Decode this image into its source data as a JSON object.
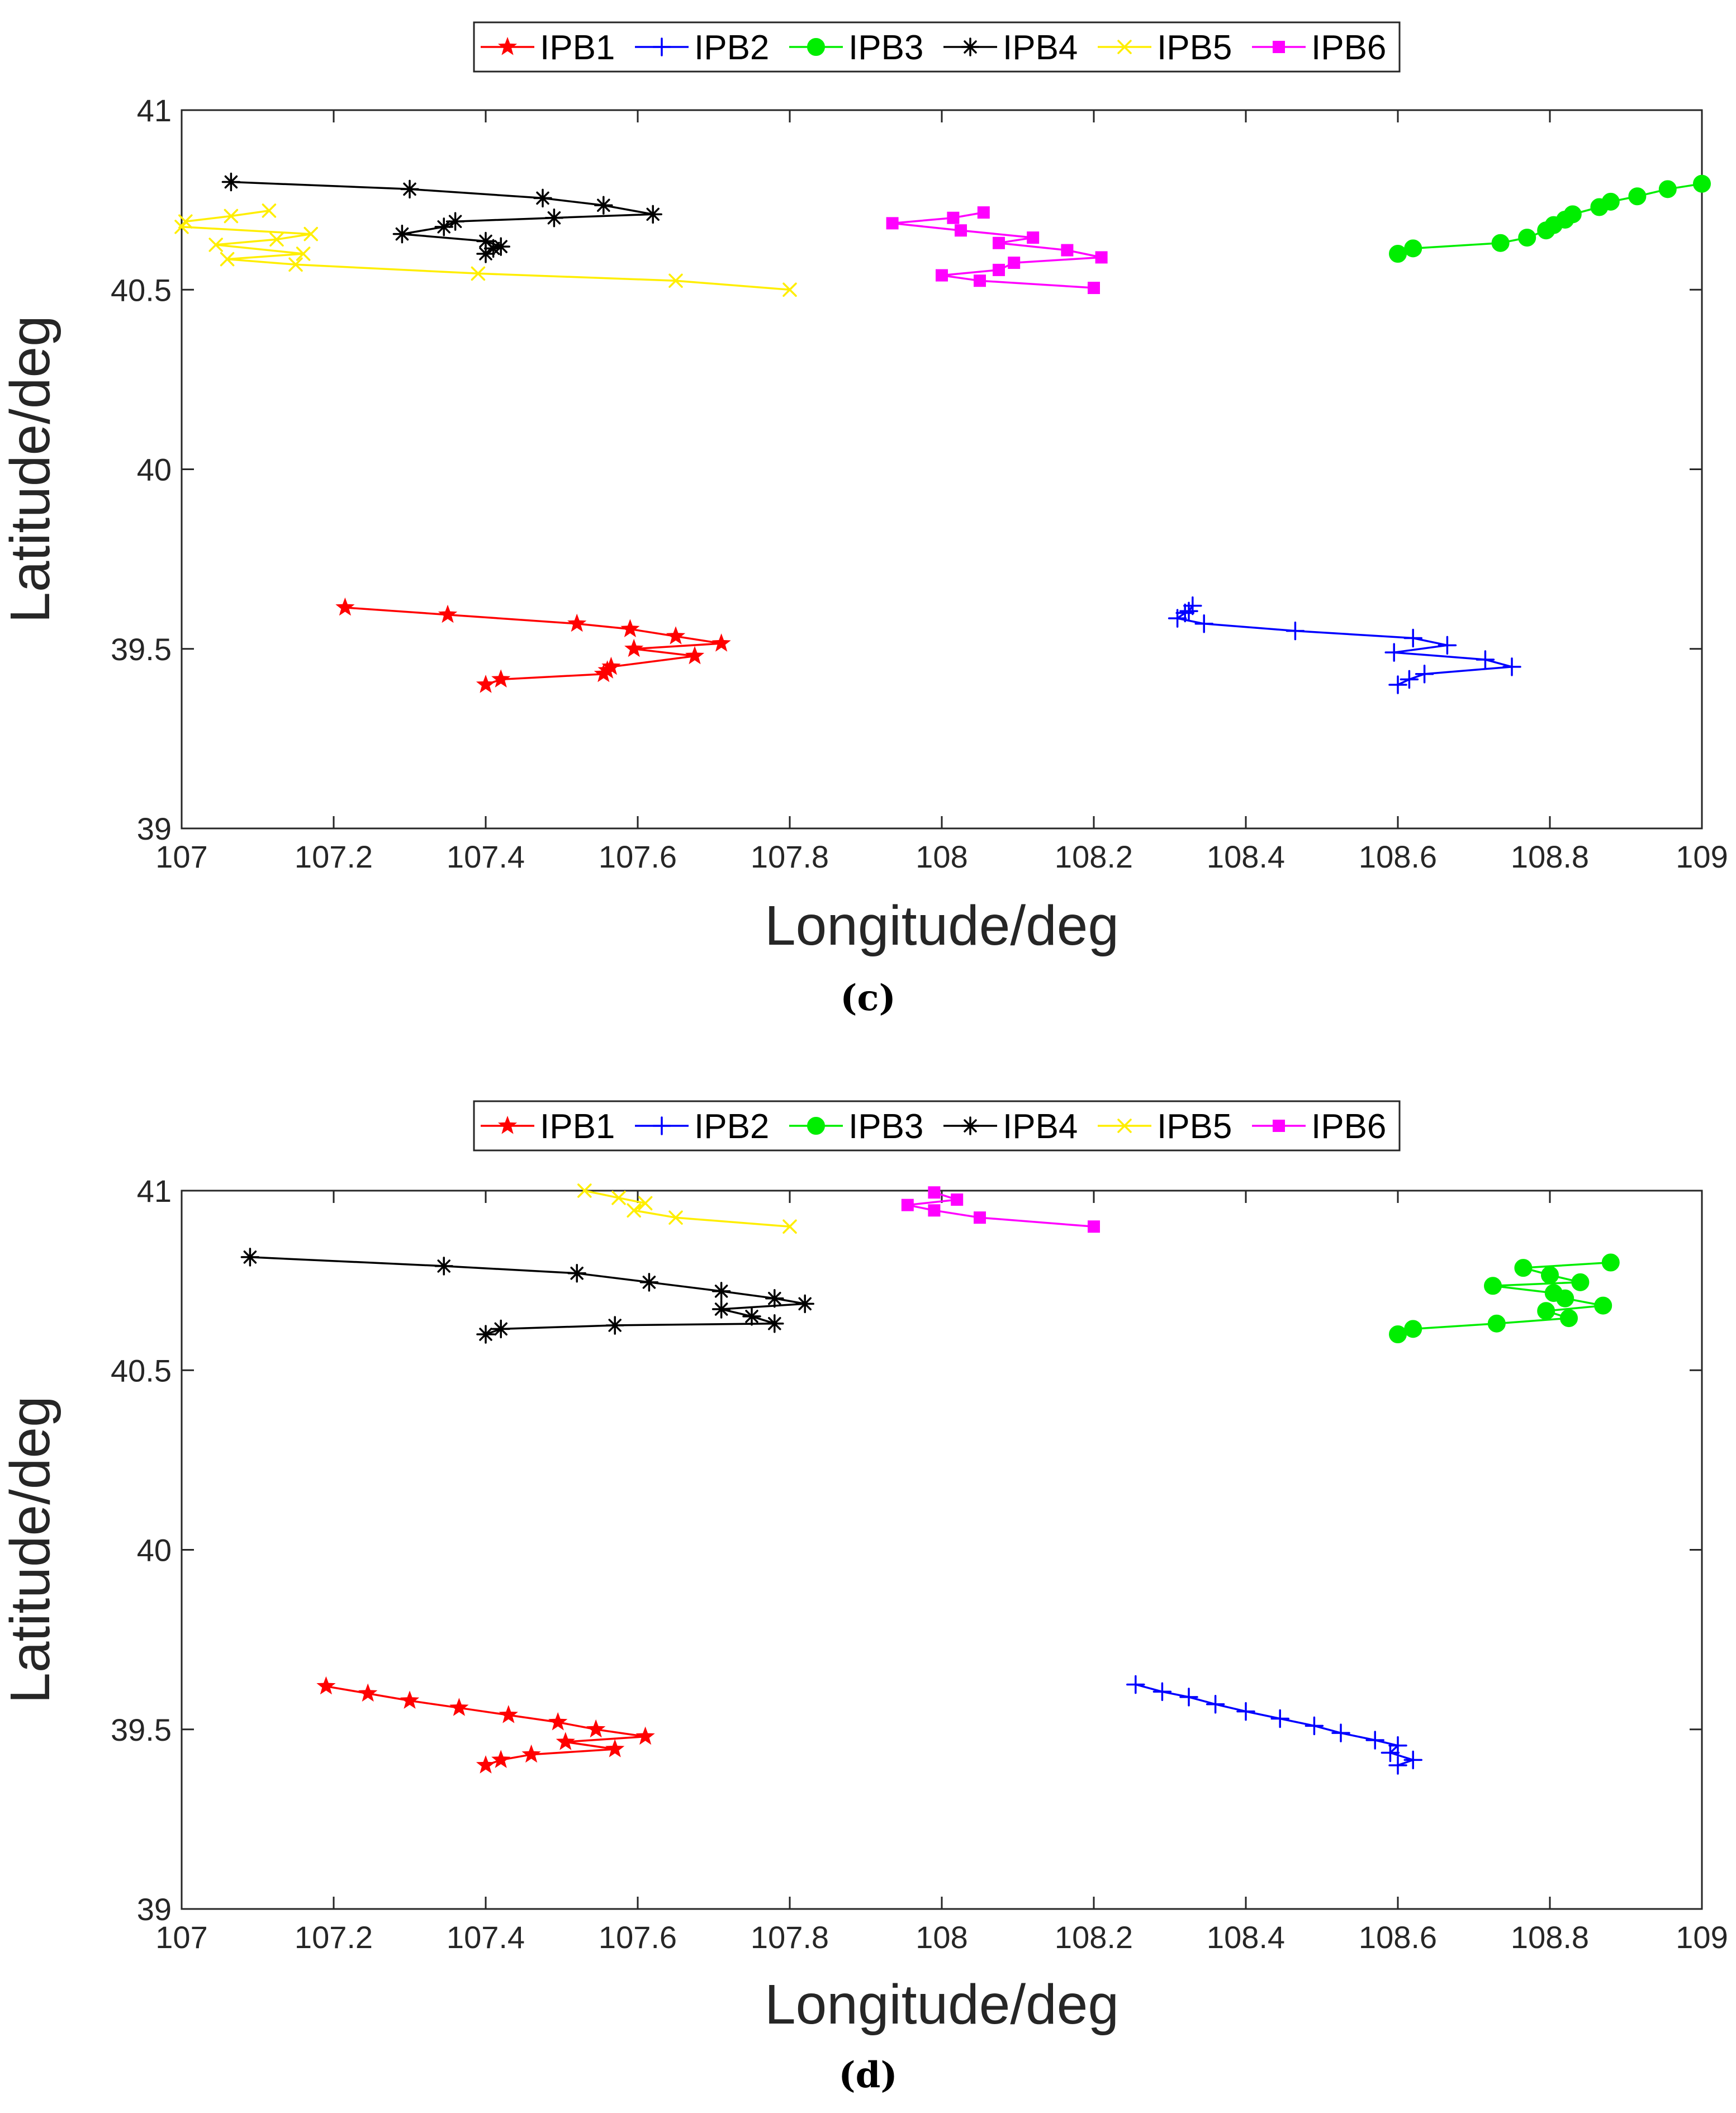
{
  "chart_data": [
    {
      "type": "line",
      "panel_label": "(c)",
      "xlabel": "Longitude/deg",
      "ylabel": "Latitude/deg",
      "xlim": [
        107,
        109
      ],
      "ylim": [
        39,
        41
      ],
      "xticks": [
        "107",
        "107.2",
        "107.4",
        "107.6",
        "107.8",
        "108",
        "108.2",
        "108.4",
        "108.6",
        "108.8",
        "109"
      ],
      "yticks": [
        "39",
        "39.5",
        "40",
        "40.5",
        "41"
      ],
      "legend_position": "top-center",
      "series": [
        {
          "name": "IPB1",
          "color": "#ff0000",
          "marker": "star",
          "x": [
            107.215,
            107.35,
            107.52,
            107.59,
            107.65,
            107.71,
            107.595,
            107.675,
            107.565,
            107.56,
            107.555,
            107.42,
            107.4
          ],
          "y": [
            39.615,
            39.595,
            39.57,
            39.555,
            39.535,
            39.515,
            39.5,
            39.48,
            39.45,
            39.44,
            39.43,
            39.415,
            39.4
          ]
        },
        {
          "name": "IPB2",
          "color": "#0000ff",
          "marker": "plus",
          "x": [
            108.33,
            108.325,
            108.32,
            108.31,
            108.345,
            108.465,
            108.62,
            108.665,
            108.595,
            108.715,
            108.75,
            108.635,
            108.615,
            108.6
          ],
          "y": [
            39.62,
            39.605,
            39.6,
            39.585,
            39.57,
            39.55,
            39.53,
            39.51,
            39.49,
            39.47,
            39.45,
            39.43,
            39.415,
            39.4
          ]
        },
        {
          "name": "IPB3",
          "color": "#00ee00",
          "marker": "circle",
          "x": [
            108.6,
            108.62,
            108.735,
            108.77,
            108.795,
            108.805,
            108.82,
            108.83,
            108.865,
            108.88,
            108.915,
            108.955,
            109.0
          ],
          "y": [
            40.6,
            40.615,
            40.63,
            40.645,
            40.665,
            40.68,
            40.695,
            40.71,
            40.73,
            40.745,
            40.76,
            40.78,
            40.795
          ]
        },
        {
          "name": "IPB4",
          "color": "#000000",
          "marker": "asterisk",
          "x": [
            107.065,
            107.3,
            107.475,
            107.555,
            107.62,
            107.49,
            107.36,
            107.345,
            107.29,
            107.4,
            107.42,
            107.41,
            107.4
          ],
          "y": [
            40.8,
            40.78,
            40.755,
            40.735,
            40.71,
            40.7,
            40.69,
            40.675,
            40.655,
            40.635,
            40.62,
            40.615,
            40.6
          ]
        },
        {
          "name": "IPB5",
          "color": "#ffee00",
          "marker": "cross",
          "x": [
            107.115,
            107.065,
            107.005,
            107.0,
            107.17,
            107.125,
            107.045,
            107.16,
            107.06,
            107.15,
            107.39,
            107.65,
            107.8
          ],
          "y": [
            40.72,
            40.705,
            40.69,
            40.675,
            40.655,
            40.64,
            40.625,
            40.6,
            40.585,
            40.57,
            40.545,
            40.525,
            40.5
          ]
        },
        {
          "name": "IPB6",
          "color": "#ff00ff",
          "marker": "square",
          "x": [
            108.055,
            108.015,
            107.935,
            108.025,
            108.12,
            108.075,
            108.165,
            108.21,
            108.095,
            108.075,
            108.0,
            108.05,
            108.2
          ],
          "y": [
            40.715,
            40.7,
            40.685,
            40.665,
            40.645,
            40.63,
            40.61,
            40.59,
            40.575,
            40.555,
            40.54,
            40.525,
            40.505
          ]
        }
      ]
    },
    {
      "type": "line",
      "panel_label": "(d)",
      "xlabel": "Longitude/deg",
      "ylabel": "Latitude/deg",
      "xlim": [
        107,
        109
      ],
      "ylim": [
        39,
        41
      ],
      "xticks": [
        "107",
        "107.2",
        "107.4",
        "107.6",
        "107.8",
        "108",
        "108.2",
        "108.4",
        "108.6",
        "108.8",
        "109"
      ],
      "yticks": [
        "39",
        "39.5",
        "40",
        "40.5",
        "41"
      ],
      "legend_position": "top-center",
      "series": [
        {
          "name": "IPB1",
          "color": "#ff0000",
          "marker": "star",
          "x": [
            107.19,
            107.245,
            107.3,
            107.365,
            107.43,
            107.495,
            107.545,
            107.61,
            107.505,
            107.57,
            107.46,
            107.42,
            107.4
          ],
          "y": [
            39.62,
            39.6,
            39.58,
            39.56,
            39.54,
            39.52,
            39.5,
            39.48,
            39.465,
            39.445,
            39.43,
            39.415,
            39.4
          ]
        },
        {
          "name": "IPB2",
          "color": "#0000ff",
          "marker": "plus",
          "x": [
            108.255,
            108.29,
            108.325,
            108.36,
            108.4,
            108.445,
            108.49,
            108.525,
            108.57,
            108.6,
            108.59,
            108.62,
            108.6
          ],
          "y": [
            39.625,
            39.605,
            39.59,
            39.57,
            39.55,
            39.53,
            39.51,
            39.49,
            39.47,
            39.455,
            39.435,
            39.415,
            39.4
          ]
        },
        {
          "name": "IPB3",
          "color": "#00ee00",
          "marker": "circle",
          "x": [
            108.88,
            108.765,
            108.8,
            108.84,
            108.725,
            108.805,
            108.82,
            108.87,
            108.795,
            108.825,
            108.73,
            108.62,
            108.6
          ],
          "y": [
            40.8,
            40.785,
            40.765,
            40.745,
            40.735,
            40.715,
            40.7,
            40.68,
            40.665,
            40.645,
            40.63,
            40.615,
            40.6
          ]
        },
        {
          "name": "IPB4",
          "color": "#000000",
          "marker": "asterisk",
          "x": [
            107.09,
            107.345,
            107.52,
            107.615,
            107.71,
            107.78,
            107.82,
            107.71,
            107.75,
            107.78,
            107.57,
            107.42,
            107.4
          ],
          "y": [
            40.815,
            40.79,
            40.77,
            40.745,
            40.72,
            40.7,
            40.685,
            40.67,
            40.65,
            40.63,
            40.625,
            40.615,
            40.6
          ]
        },
        {
          "name": "IPB5",
          "color": "#ffee00",
          "marker": "cross",
          "x": [
            107.53,
            107.575,
            107.61,
            107.595,
            107.65,
            107.8
          ],
          "y": [
            41.0,
            40.98,
            40.965,
            40.945,
            40.925,
            40.9
          ]
        },
        {
          "name": "IPB6",
          "color": "#ff00ff",
          "marker": "square",
          "x": [
            107.99,
            108.02,
            107.955,
            107.99,
            108.05,
            108.2
          ],
          "y": [
            40.995,
            40.975,
            40.96,
            40.945,
            40.925,
            40.9
          ]
        }
      ]
    }
  ]
}
